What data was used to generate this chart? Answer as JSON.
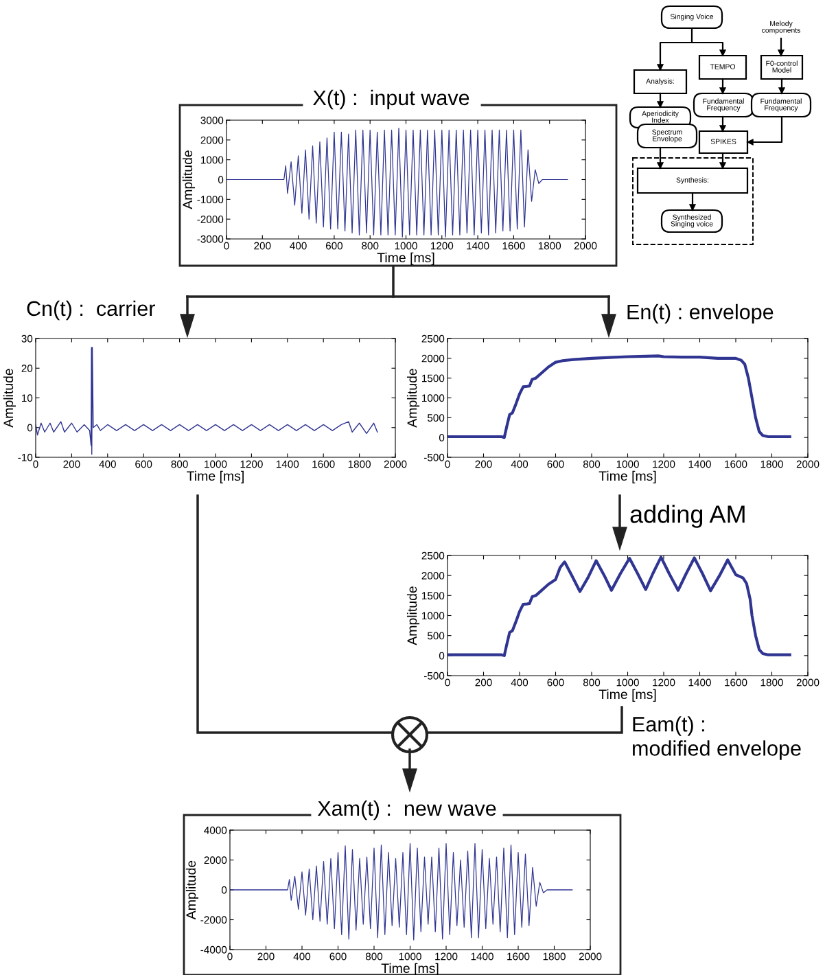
{
  "chart_data": [
    {
      "type": "line",
      "title": "X(t) :  input wave",
      "xlabel": "Time [ms]",
      "ylabel": "Amplitude",
      "xlim": [
        0,
        2000
      ],
      "xticks": [
        0,
        200,
        400,
        600,
        800,
        1000,
        1200,
        1400,
        1600,
        1800,
        2000
      ],
      "ylim": [
        -3000,
        3000
      ],
      "yticks": [
        -3000,
        -2000,
        -1000,
        0,
        1000,
        2000,
        3000
      ],
      "grid": false,
      "marker": "none",
      "line_style": "solid",
      "series": [
        {
          "color": "#303592",
          "x": [
            0,
            320,
            330,
            340,
            360,
            380,
            400,
            420,
            440,
            460,
            480,
            500,
            520,
            540,
            560,
            580,
            600,
            620,
            640,
            660,
            680,
            700,
            720,
            740,
            760,
            780,
            800,
            820,
            840,
            860,
            880,
            900,
            920,
            940,
            960,
            980,
            1000,
            1020,
            1040,
            1060,
            1080,
            1100,
            1120,
            1140,
            1160,
            1180,
            1200,
            1220,
            1240,
            1260,
            1280,
            1300,
            1320,
            1340,
            1360,
            1380,
            1400,
            1420,
            1440,
            1460,
            1480,
            1500,
            1520,
            1540,
            1560,
            1580,
            1600,
            1620,
            1640,
            1660,
            1680,
            1700,
            1720,
            1740,
            1760,
            1900
          ],
          "values": [
            0,
            0,
            700,
            -700,
            900,
            -1300,
            1200,
            -1700,
            1500,
            -2000,
            1700,
            -2200,
            1900,
            -2400,
            2100,
            -2500,
            2400,
            -2500,
            2400,
            -2600,
            2300,
            -2700,
            2500,
            -2800,
            2500,
            -2700,
            2500,
            -2800,
            2400,
            -2800,
            2500,
            -2800,
            2500,
            -2800,
            2600,
            -2900,
            2500,
            -2800,
            2500,
            -2800,
            2500,
            -2800,
            2500,
            -2800,
            2500,
            -2800,
            2500,
            -2900,
            2500,
            -2800,
            2500,
            -2800,
            2500,
            -2700,
            2500,
            -2800,
            2500,
            -2700,
            2500,
            -2800,
            2500,
            -2700,
            2500,
            -2600,
            2500,
            -2600,
            2500,
            -2500,
            2500,
            -2400,
            1500,
            -1100,
            500,
            -200,
            0,
            0
          ]
        }
      ]
    },
    {
      "type": "line",
      "title": "Cn(t) :  carrier",
      "xlabel": "Time [ms]",
      "ylabel": "Amplitude",
      "xlim": [
        0,
        2000
      ],
      "xticks": [
        0,
        200,
        400,
        600,
        800,
        1000,
        1200,
        1400,
        1600,
        1800,
        2000
      ],
      "ylim": [
        -10,
        30
      ],
      "yticks": [
        -10,
        0,
        10,
        20,
        30
      ],
      "grid": false,
      "marker": "none",
      "line_style": "solid",
      "series": [
        {
          "color": "#303592",
          "x": [
            0,
            10,
            30,
            50,
            80,
            100,
            140,
            160,
            200,
            230,
            270,
            300,
            308,
            310,
            312,
            315,
            320,
            340,
            360,
            400,
            450,
            500,
            550,
            600,
            650,
            700,
            750,
            800,
            850,
            900,
            950,
            1000,
            1050,
            1100,
            1150,
            1200,
            1250,
            1300,
            1350,
            1400,
            1450,
            1500,
            1550,
            1600,
            1650,
            1700,
            1740,
            1760,
            1800,
            1840,
            1880,
            1900
          ],
          "values": [
            1,
            -2.5,
            1.5,
            -1.5,
            1.5,
            -1.5,
            2,
            -1.5,
            1.5,
            -1.5,
            1,
            -1,
            -6,
            27,
            -9,
            27,
            0,
            1,
            -1,
            1,
            -1,
            1,
            -1,
            1,
            -1,
            1,
            -1,
            1,
            -1,
            1,
            -1,
            1,
            -1,
            1,
            -1,
            1,
            -1,
            1,
            -1,
            1,
            -1,
            1,
            -1,
            1,
            -1,
            1,
            2,
            -1.5,
            1.5,
            -2,
            1.5,
            -1.5
          ]
        }
      ]
    },
    {
      "type": "line",
      "title": "En(t) : envelope",
      "xlabel": "Time [ms]",
      "ylabel": "Amplitude",
      "xlim": [
        0,
        2000
      ],
      "xticks": [
        0,
        200,
        400,
        600,
        800,
        1000,
        1200,
        1400,
        1600,
        1800,
        2000
      ],
      "ylim": [
        -500,
        2500
      ],
      "yticks": [
        -500,
        0,
        500,
        1000,
        1500,
        2000,
        2500
      ],
      "grid": false,
      "marker": "none",
      "line_style": "solid",
      "series": [
        {
          "color": "#303592",
          "x": [
            0,
            300,
            315,
            330,
            345,
            360,
            380,
            400,
            420,
            440,
            455,
            470,
            490,
            520,
            560,
            600,
            640,
            700,
            800,
            900,
            1000,
            1100,
            1170,
            1200,
            1300,
            1400,
            1500,
            1600,
            1630,
            1650,
            1670,
            1690,
            1710,
            1730,
            1750,
            1780,
            1900
          ],
          "values": [
            20,
            20,
            0,
            300,
            580,
            620,
            850,
            1100,
            1280,
            1290,
            1300,
            1470,
            1500,
            1620,
            1780,
            1900,
            1940,
            1970,
            2000,
            2020,
            2040,
            2050,
            2060,
            2040,
            2030,
            2030,
            2000,
            2000,
            1950,
            1850,
            1500,
            1000,
            500,
            150,
            50,
            20,
            20
          ]
        }
      ]
    },
    {
      "type": "line",
      "title": "Eam(t) :\nmodified envelope",
      "annotations": [
        "adding AM"
      ],
      "xlabel": "Time [ms]",
      "ylabel": "Amplitude",
      "xlim": [
        0,
        2000
      ],
      "xticks": [
        0,
        200,
        400,
        600,
        800,
        1000,
        1200,
        1400,
        1600,
        1800,
        2000
      ],
      "ylim": [
        -500,
        2500
      ],
      "yticks": [
        -500,
        0,
        500,
        1000,
        1500,
        2000,
        2500
      ],
      "grid": false,
      "marker": "none",
      "line_style": "solid",
      "series": [
        {
          "color": "#303592",
          "x": [
            0,
            300,
            315,
            330,
            345,
            360,
            380,
            400,
            420,
            440,
            455,
            470,
            490,
            520,
            560,
            600,
            625,
            650,
            690,
            735,
            780,
            825,
            870,
            910,
            960,
            1010,
            1055,
            1100,
            1140,
            1185,
            1230,
            1280,
            1325,
            1370,
            1415,
            1460,
            1510,
            1555,
            1600,
            1640,
            1660,
            1680,
            1690,
            1710,
            1730,
            1750,
            1780,
            1900
          ],
          "values": [
            20,
            20,
            0,
            300,
            580,
            620,
            850,
            1100,
            1280,
            1290,
            1300,
            1470,
            1500,
            1620,
            1780,
            1900,
            2200,
            2340,
            2000,
            1600,
            1950,
            2370,
            2000,
            1630,
            2050,
            2430,
            2050,
            1650,
            2050,
            2460,
            2050,
            1630,
            2050,
            2440,
            2050,
            1620,
            2000,
            2390,
            2020,
            1940,
            1800,
            1400,
            1000,
            500,
            150,
            50,
            20,
            20
          ]
        }
      ]
    },
    {
      "type": "line",
      "title": "Xam(t) :  new wave",
      "xlabel": "Time [ms]",
      "ylabel": "Amplitude",
      "xlim": [
        0,
        2000
      ],
      "xticks": [
        0,
        200,
        400,
        600,
        800,
        1000,
        1200,
        1400,
        1600,
        1800,
        2000
      ],
      "ylim": [
        -4000,
        4000
      ],
      "yticks": [
        -4000,
        -2000,
        0,
        2000,
        4000
      ],
      "grid": false,
      "marker": "none",
      "line_style": "solid",
      "series": [
        {
          "color": "#303592",
          "x": [
            0,
            320,
            330,
            340,
            360,
            380,
            400,
            420,
            440,
            460,
            480,
            500,
            520,
            540,
            560,
            580,
            600,
            620,
            640,
            660,
            680,
            700,
            720,
            740,
            760,
            780,
            800,
            820,
            840,
            860,
            880,
            900,
            920,
            940,
            960,
            980,
            1000,
            1020,
            1040,
            1060,
            1080,
            1100,
            1120,
            1140,
            1160,
            1180,
            1200,
            1220,
            1240,
            1260,
            1280,
            1300,
            1320,
            1340,
            1360,
            1380,
            1400,
            1420,
            1440,
            1460,
            1480,
            1500,
            1520,
            1540,
            1560,
            1580,
            1600,
            1620,
            1640,
            1660,
            1680,
            1700,
            1720,
            1740,
            1760,
            1900
          ],
          "values": [
            0,
            0,
            700,
            -700,
            900,
            -1300,
            1200,
            -1700,
            1400,
            -2000,
            1600,
            -2100,
            1900,
            -2300,
            2100,
            -2600,
            2500,
            -3000,
            2950,
            -3300,
            2700,
            -2700,
            2100,
            -2300,
            2200,
            -2600,
            2800,
            -3200,
            3000,
            -3000,
            2500,
            -2400,
            2100,
            -2500,
            2500,
            -3000,
            3100,
            -3350,
            2800,
            -2800,
            2200,
            -2300,
            2200,
            -2800,
            2800,
            -3300,
            3100,
            -3000,
            2500,
            -2400,
            2000,
            -2500,
            2600,
            -3200,
            3100,
            -3200,
            2700,
            -2600,
            2100,
            -2300,
            2200,
            -2800,
            2800,
            -3200,
            3000,
            -3000,
            2500,
            -2500,
            2400,
            -2400,
            1500,
            -1100,
            500,
            -200,
            0,
            0
          ]
        }
      ]
    },
    {
      "type": "other",
      "annotations": [
        "Singing Voice",
        "Melody components",
        "TEMPO",
        "F0-control Model",
        "Analysis:",
        "Fundamental Frequency",
        "Fundamental Frequency",
        "Aperiodicity Index",
        "Spectrum Envelope",
        "SPIKES",
        "Synthesis:",
        "Synthesized Singing voice"
      ]
    }
  ]
}
